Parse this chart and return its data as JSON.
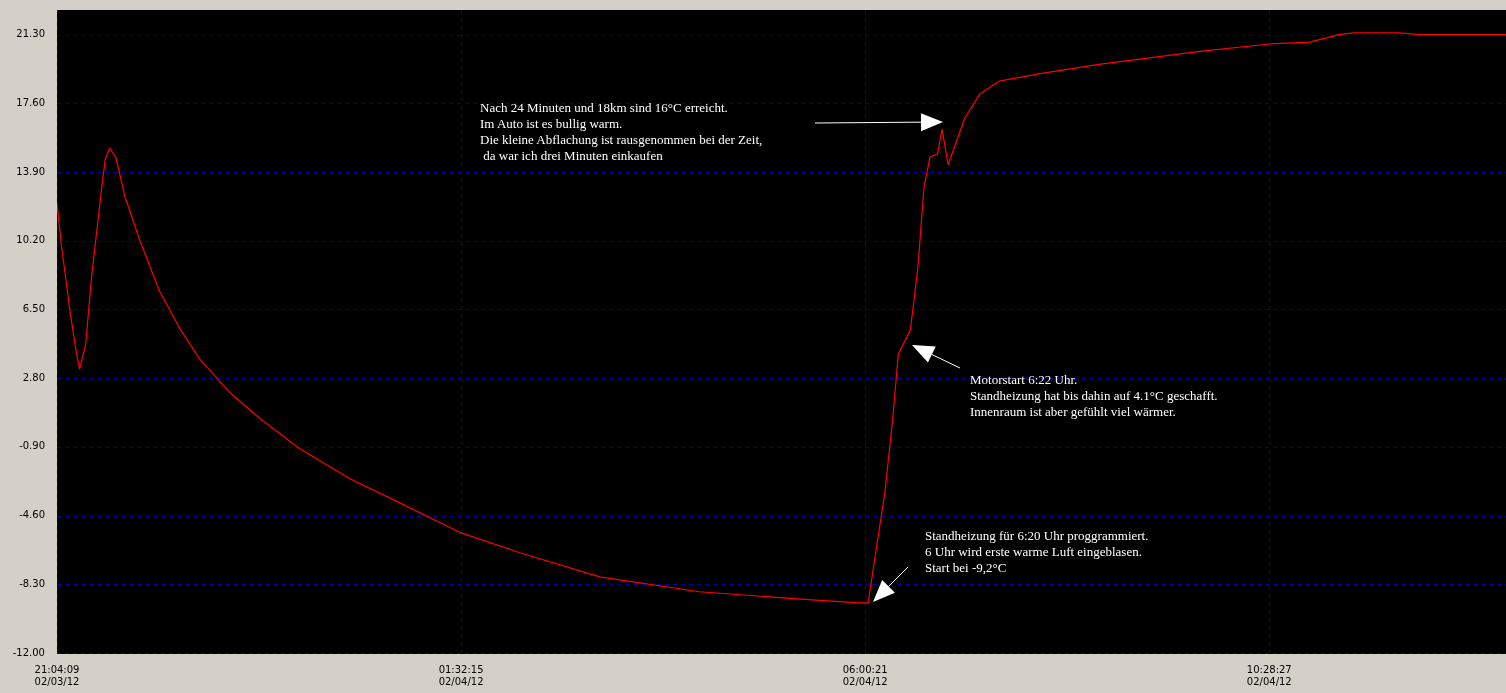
{
  "chart_data": {
    "type": "line",
    "color": "#ff0000",
    "grid": true,
    "legend": false,
    "marker": "none",
    "line_style": "solid",
    "x": [
      "--02-03T21:04",
      "--02-03T21:07",
      "--02-03T21:13",
      "--02-03T21:17",
      "--02-03T21:19",
      "--02-03T21:23",
      "--02-03T21:27",
      "--02-03T21:33",
      "--02-03T21:36",
      "--02-03T21:39",
      "--02-03T21:43",
      "--02-03T21:49",
      "--02-03T21:59",
      "--02-03T22:12",
      "--02-03T22:26",
      "--02-03T22:39",
      "--02-03T22:59",
      "--02-03T23:19",
      "--02-03T23:45",
      "--02-04T00:18",
      "--02-04T00:51",
      "--02-04T01:31",
      "--02-04T02:11",
      "--02-04T03:04",
      "--02-04T04:10",
      "--02-04T05:17",
      "--02-04T05:56",
      "--02-04T06:02",
      "--02-04T06:06",
      "--02-04T06:13",
      "--02-04T06:18",
      "--02-04T06:22",
      "--02-04T06:30",
      "--02-04T06:35",
      "--02-04T06:39",
      "--02-04T06:43",
      "--02-04T06:48",
      "--02-04T06:51",
      "--02-04T06:55",
      "--02-04T06:59",
      "--02-04T07:06",
      "--02-04T07:16",
      "--02-04T07:29",
      "--02-04T07:56",
      "--02-04T08:35",
      "--02-04T09:42",
      "--02-04T10:28",
      "--02-04T10:55",
      "--02-04T11:14",
      "--02-04T11:24",
      "--02-04T11:54",
      "--02-04T12:08",
      "--02-04T13:05"
    ],
    "values": [
      12.2,
      9.9,
      6.2,
      4.1,
      3.3,
      4.6,
      8.3,
      12.6,
      14.6,
      15.2,
      14.7,
      12.6,
      10.2,
      7.5,
      5.4,
      3.8,
      2.0,
      0.6,
      -1.0,
      -2.6,
      -3.9,
      -5.5,
      -6.6,
      -7.9,
      -8.7,
      -9.1,
      -9.3,
      -9.3,
      -7.1,
      -3.4,
      0.4,
      4.1,
      5.4,
      8.8,
      13.1,
      14.7,
      14.9,
      16.2,
      14.3,
      15.2,
      16.8,
      18.1,
      18.8,
      19.2,
      19.7,
      20.4,
      20.8,
      20.9,
      21.3,
      21.4,
      21.4,
      21.3,
      21.3
    ],
    "xlim": [
      "--02-03T21:04",
      "--02-04T13:05"
    ],
    "xticks": [
      {
        "value": "--02-03T21:04",
        "label": "21:04:09\n02/03/12"
      },
      {
        "value": "--02-04T01:32",
        "label": "01:32:15\n02/04/12"
      },
      {
        "value": "--02-04T06:00",
        "label": "06:00:21\n02/04/12"
      },
      {
        "value": "--02-04T10:28",
        "label": "10:28:27\n02/04/12"
      }
    ],
    "ylim": [
      -12,
      22.63
    ],
    "yticks": [
      {
        "value": -12,
        "label": "-12.00"
      },
      {
        "value": -8.3,
        "label": "-8.30"
      },
      {
        "value": -4.6,
        "label": "-4.60"
      },
      {
        "value": -0.9,
        "label": "-0.90"
      },
      {
        "value": 2.8,
        "label": "2.80"
      },
      {
        "value": 6.5,
        "label": "6.50"
      },
      {
        "value": 10.2,
        "label": "10.20"
      },
      {
        "value": 13.9,
        "label": "13.90"
      },
      {
        "value": 17.6,
        "label": "17.60"
      },
      {
        "value": 21.3,
        "label": "21.30"
      }
    ],
    "annotations": [
      "Nach 24 Minuten und 18km sind 16°C erreicht.\nIm Auto ist es bullig warm.\nDie kleine Abflachung ist rausgenommen bei der Zeit,\n da war ich drei Minuten einkaufen",
      "Motorstart 6:22 Uhr.\nStandheizung hat bis dahin auf 4.1°C geschafft.\nInnenraum ist aber gefühlt viel wärmer.",
      "Standheizung für 6:20 Uhr proggrammiert.\n6 Uhr wird erste warme Luft eingeblasen.\nStart bei -9,2°C"
    ]
  }
}
